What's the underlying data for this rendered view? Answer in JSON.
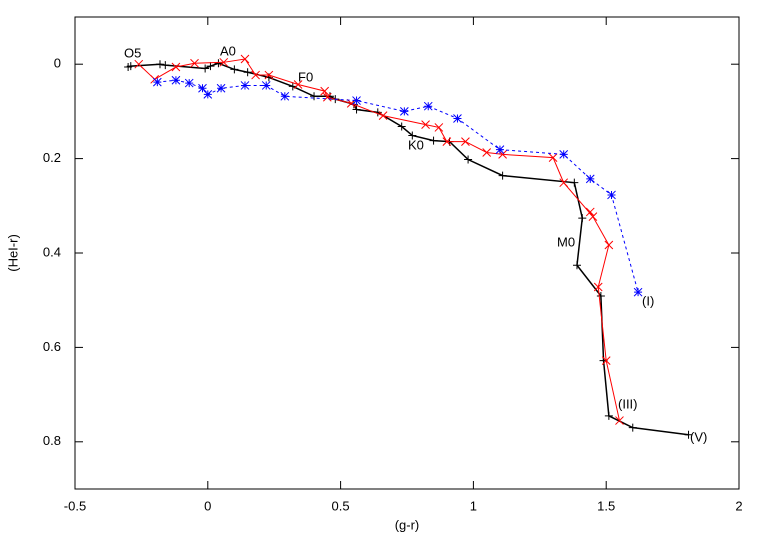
{
  "chart_data": {
    "type": "line",
    "xlabel": "(g-r)",
    "ylabel": "(HeI-r)",
    "xlim": [
      -0.5,
      2
    ],
    "ylim": [
      -0.1,
      0.9
    ],
    "y_inverted": true,
    "xticks": [
      -0.5,
      0,
      0.5,
      1,
      1.5,
      2
    ],
    "yticks": [
      0,
      0.2,
      0.4,
      0.6,
      0.8
    ],
    "grid": false,
    "annotations": [
      "O5",
      "A0",
      "F0",
      "K0",
      "M0"
    ],
    "series": [
      {
        "name": "(V)",
        "color": "#000000",
        "marker": "plus",
        "dashed": false,
        "x": [
          -0.3,
          -0.29,
          -0.18,
          -0.16,
          -0.01,
          0.01,
          0.04,
          0.1,
          0.15,
          0.23,
          0.32,
          0.4,
          0.46,
          0.48,
          0.55,
          0.56,
          0.64,
          0.73,
          0.77,
          0.85,
          0.91,
          0.98,
          1.11,
          1.38,
          1.41,
          1.39,
          1.48,
          1.49,
          1.51,
          1.6,
          1.81
        ],
        "values": [
          0.006,
          0.004,
          0.0,
          0.002,
          0.009,
          0.004,
          -0.002,
          0.011,
          0.017,
          0.028,
          0.047,
          0.068,
          0.068,
          0.074,
          0.085,
          0.096,
          0.102,
          0.132,
          0.151,
          0.162,
          0.164,
          0.202,
          0.236,
          0.251,
          0.326,
          0.426,
          0.491,
          0.628,
          0.745,
          0.77,
          0.785
        ]
      },
      {
        "name": "(III)",
        "color": "#ff0000",
        "marker": "cross",
        "dashed": false,
        "x": [
          -0.26,
          -0.2,
          -0.12,
          -0.05,
          0.06,
          0.14,
          0.18,
          0.23,
          0.34,
          0.44,
          0.45,
          0.54,
          0.66,
          0.82,
          0.87,
          0.9,
          0.97,
          1.05,
          1.11,
          1.3,
          1.34,
          1.45,
          1.44,
          1.51,
          1.47,
          1.5,
          1.55
        ],
        "values": [
          0.0,
          0.032,
          0.006,
          -0.002,
          -0.004,
          -0.011,
          0.023,
          0.023,
          0.043,
          0.057,
          0.07,
          0.083,
          0.109,
          0.128,
          0.134,
          0.164,
          0.164,
          0.187,
          0.191,
          0.198,
          0.251,
          0.323,
          0.313,
          0.383,
          0.472,
          0.628,
          0.755
        ]
      },
      {
        "name": "(I)",
        "color": "#0000ff",
        "marker": "star",
        "dashed": true,
        "x": [
          -0.19,
          -0.12,
          -0.07,
          -0.02,
          0.0,
          0.05,
          0.14,
          0.22,
          0.29,
          0.56,
          0.74,
          0.83,
          0.94,
          1.1,
          1.34,
          1.44,
          1.52,
          1.62
        ],
        "values": [
          0.038,
          0.034,
          0.04,
          0.051,
          0.064,
          0.051,
          0.045,
          0.045,
          0.068,
          0.077,
          0.1,
          0.089,
          0.115,
          0.181,
          0.191,
          0.243,
          0.277,
          0.483
        ]
      }
    ]
  }
}
